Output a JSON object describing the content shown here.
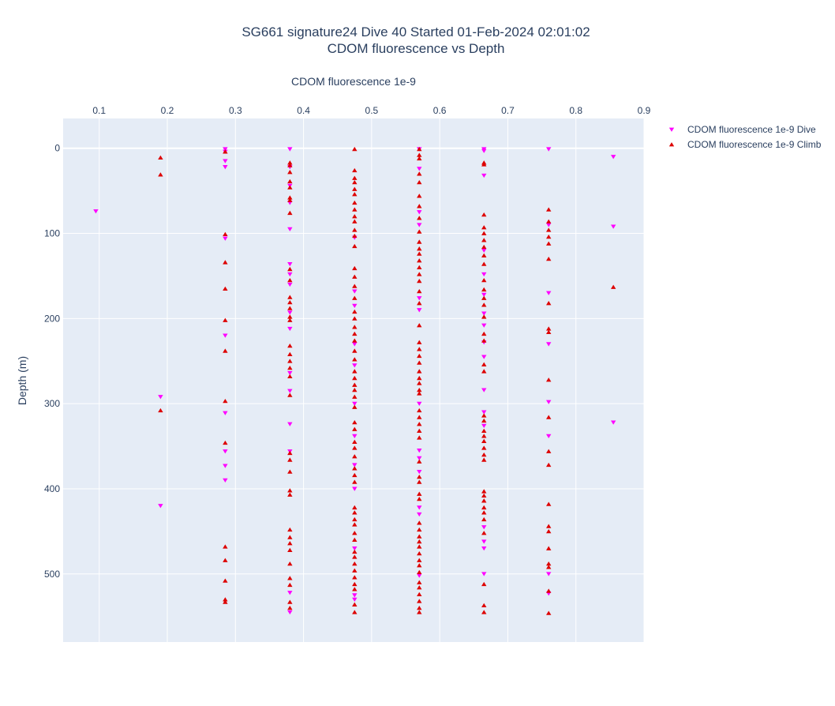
{
  "chart_data": {
    "type": "scatter",
    "title": "SG661 signature24 Dive 40 Started 01-Feb-2024 02:01:02",
    "subtitle": "CDOM fluorescence vs Depth",
    "xlabel": "CDOM fluorescence 1e-9",
    "ylabel": "Depth (m)",
    "x_ticks": [
      "0.1",
      "0.2",
      "0.3",
      "0.4",
      "0.5",
      "0.6",
      "0.7",
      "0.8",
      "0.9"
    ],
    "y_ticks": [
      "0",
      "100",
      "200",
      "300",
      "400",
      "500"
    ],
    "xlim": [
      0.047,
      0.9
    ],
    "ylim": [
      -35,
      580
    ],
    "x_axis_position": "top",
    "y_reversed": true,
    "grid": true,
    "legend_position": "top-right",
    "series": [
      {
        "name": "CDOM fluorescence 1e-9 Dive",
        "marker": "triangle-down",
        "color": "#ff00ff",
        "points": [
          [
            0.095,
            74
          ],
          [
            0.19,
            292
          ],
          [
            0.19,
            420
          ],
          [
            0.285,
            1
          ],
          [
            0.285,
            4
          ],
          [
            0.285,
            15
          ],
          [
            0.285,
            22
          ],
          [
            0.285,
            106
          ],
          [
            0.285,
            220
          ],
          [
            0.285,
            311
          ],
          [
            0.285,
            356
          ],
          [
            0.285,
            373
          ],
          [
            0.285,
            390
          ],
          [
            0.38,
            1
          ],
          [
            0.38,
            22
          ],
          [
            0.38,
            44
          ],
          [
            0.38,
            64
          ],
          [
            0.38,
            95
          ],
          [
            0.38,
            136
          ],
          [
            0.38,
            148
          ],
          [
            0.38,
            160
          ],
          [
            0.38,
            193
          ],
          [
            0.38,
            212
          ],
          [
            0.38,
            264
          ],
          [
            0.38,
            285
          ],
          [
            0.38,
            324
          ],
          [
            0.38,
            356
          ],
          [
            0.38,
            522
          ],
          [
            0.38,
            545
          ],
          [
            0.475,
            105
          ],
          [
            0.475,
            168
          ],
          [
            0.475,
            185
          ],
          [
            0.475,
            230
          ],
          [
            0.475,
            255
          ],
          [
            0.475,
            300
          ],
          [
            0.475,
            338
          ],
          [
            0.475,
            372
          ],
          [
            0.475,
            400
          ],
          [
            0.475,
            470
          ],
          [
            0.475,
            525
          ],
          [
            0.475,
            530
          ],
          [
            0.57,
            1
          ],
          [
            0.57,
            24
          ],
          [
            0.57,
            75
          ],
          [
            0.57,
            90
          ],
          [
            0.57,
            176
          ],
          [
            0.57,
            190
          ],
          [
            0.57,
            300
          ],
          [
            0.57,
            355
          ],
          [
            0.57,
            364
          ],
          [
            0.57,
            380
          ],
          [
            0.57,
            422
          ],
          [
            0.57,
            430
          ],
          [
            0.57,
            502
          ],
          [
            0.665,
            1
          ],
          [
            0.665,
            3
          ],
          [
            0.665,
            32
          ],
          [
            0.665,
            120
          ],
          [
            0.665,
            148
          ],
          [
            0.665,
            172
          ],
          [
            0.665,
            194
          ],
          [
            0.665,
            208
          ],
          [
            0.665,
            228
          ],
          [
            0.665,
            245
          ],
          [
            0.665,
            284
          ],
          [
            0.665,
            310
          ],
          [
            0.665,
            326
          ],
          [
            0.665,
            445
          ],
          [
            0.665,
            462
          ],
          [
            0.665,
            470
          ],
          [
            0.665,
            500
          ],
          [
            0.76,
            1
          ],
          [
            0.76,
            90
          ],
          [
            0.76,
            170
          ],
          [
            0.76,
            230
          ],
          [
            0.76,
            298
          ],
          [
            0.76,
            338
          ],
          [
            0.76,
            500
          ],
          [
            0.76,
            523
          ],
          [
            0.855,
            10
          ],
          [
            0.855,
            92
          ],
          [
            0.855,
            322
          ]
        ]
      },
      {
        "name": "CDOM fluorescence 1e-9 Climb",
        "marker": "triangle-up",
        "color": "#dd0000",
        "points": [
          [
            0.19,
            11
          ],
          [
            0.19,
            31
          ],
          [
            0.19,
            308
          ],
          [
            0.285,
            4
          ],
          [
            0.285,
            101
          ],
          [
            0.285,
            134
          ],
          [
            0.285,
            165
          ],
          [
            0.285,
            202
          ],
          [
            0.285,
            238
          ],
          [
            0.285,
            297
          ],
          [
            0.285,
            346
          ],
          [
            0.285,
            468
          ],
          [
            0.285,
            484
          ],
          [
            0.285,
            508
          ],
          [
            0.285,
            530
          ],
          [
            0.285,
            533
          ],
          [
            0.38,
            17
          ],
          [
            0.38,
            20
          ],
          [
            0.38,
            28
          ],
          [
            0.38,
            39
          ],
          [
            0.38,
            46
          ],
          [
            0.38,
            58
          ],
          [
            0.38,
            61
          ],
          [
            0.38,
            76
          ],
          [
            0.38,
            142
          ],
          [
            0.38,
            155
          ],
          [
            0.38,
            175
          ],
          [
            0.38,
            181
          ],
          [
            0.38,
            188
          ],
          [
            0.38,
            198
          ],
          [
            0.38,
            202
          ],
          [
            0.38,
            232
          ],
          [
            0.38,
            242
          ],
          [
            0.38,
            250
          ],
          [
            0.38,
            258
          ],
          [
            0.38,
            268
          ],
          [
            0.38,
            290
          ],
          [
            0.38,
            358
          ],
          [
            0.38,
            366
          ],
          [
            0.38,
            380
          ],
          [
            0.38,
            402
          ],
          [
            0.38,
            407
          ],
          [
            0.38,
            448
          ],
          [
            0.38,
            457
          ],
          [
            0.38,
            464
          ],
          [
            0.38,
            472
          ],
          [
            0.38,
            488
          ],
          [
            0.38,
            505
          ],
          [
            0.38,
            513
          ],
          [
            0.38,
            533
          ],
          [
            0.38,
            540
          ],
          [
            0.475,
            1
          ],
          [
            0.475,
            26
          ],
          [
            0.475,
            35
          ],
          [
            0.475,
            40
          ],
          [
            0.475,
            48
          ],
          [
            0.475,
            54
          ],
          [
            0.475,
            64
          ],
          [
            0.475,
            72
          ],
          [
            0.475,
            80
          ],
          [
            0.475,
            86
          ],
          [
            0.475,
            96
          ],
          [
            0.475,
            103
          ],
          [
            0.475,
            115
          ],
          [
            0.475,
            141
          ],
          [
            0.475,
            151
          ],
          [
            0.475,
            162
          ],
          [
            0.475,
            176
          ],
          [
            0.475,
            192
          ],
          [
            0.475,
            200
          ],
          [
            0.475,
            210
          ],
          [
            0.475,
            218
          ],
          [
            0.475,
            226
          ],
          [
            0.475,
            238
          ],
          [
            0.475,
            248
          ],
          [
            0.475,
            262
          ],
          [
            0.475,
            270
          ],
          [
            0.475,
            278
          ],
          [
            0.475,
            284
          ],
          [
            0.475,
            292
          ],
          [
            0.475,
            304
          ],
          [
            0.475,
            322
          ],
          [
            0.475,
            330
          ],
          [
            0.475,
            345
          ],
          [
            0.475,
            352
          ],
          [
            0.475,
            362
          ],
          [
            0.475,
            376
          ],
          [
            0.475,
            384
          ],
          [
            0.475,
            392
          ],
          [
            0.475,
            422
          ],
          [
            0.475,
            428
          ],
          [
            0.475,
            436
          ],
          [
            0.475,
            442
          ],
          [
            0.475,
            452
          ],
          [
            0.475,
            460
          ],
          [
            0.475,
            474
          ],
          [
            0.475,
            480
          ],
          [
            0.475,
            488
          ],
          [
            0.475,
            496
          ],
          [
            0.475,
            504
          ],
          [
            0.475,
            512
          ],
          [
            0.475,
            518
          ],
          [
            0.475,
            536
          ],
          [
            0.475,
            545
          ],
          [
            0.57,
            1
          ],
          [
            0.57,
            8
          ],
          [
            0.57,
            12
          ],
          [
            0.57,
            30
          ],
          [
            0.57,
            40
          ],
          [
            0.57,
            56
          ],
          [
            0.57,
            68
          ],
          [
            0.57,
            82
          ],
          [
            0.57,
            98
          ],
          [
            0.57,
            110
          ],
          [
            0.57,
            118
          ],
          [
            0.57,
            124
          ],
          [
            0.57,
            132
          ],
          [
            0.57,
            140
          ],
          [
            0.57,
            148
          ],
          [
            0.57,
            156
          ],
          [
            0.57,
            168
          ],
          [
            0.57,
            182
          ],
          [
            0.57,
            208
          ],
          [
            0.57,
            228
          ],
          [
            0.57,
            236
          ],
          [
            0.57,
            244
          ],
          [
            0.57,
            252
          ],
          [
            0.57,
            262
          ],
          [
            0.57,
            270
          ],
          [
            0.57,
            276
          ],
          [
            0.57,
            284
          ],
          [
            0.57,
            288
          ],
          [
            0.57,
            308
          ],
          [
            0.57,
            316
          ],
          [
            0.57,
            324
          ],
          [
            0.57,
            332
          ],
          [
            0.57,
            340
          ],
          [
            0.57,
            368
          ],
          [
            0.57,
            386
          ],
          [
            0.57,
            392
          ],
          [
            0.57,
            406
          ],
          [
            0.57,
            412
          ],
          [
            0.57,
            440
          ],
          [
            0.57,
            448
          ],
          [
            0.57,
            456
          ],
          [
            0.57,
            462
          ],
          [
            0.57,
            468
          ],
          [
            0.57,
            476
          ],
          [
            0.57,
            484
          ],
          [
            0.57,
            490
          ],
          [
            0.57,
            498
          ],
          [
            0.57,
            510
          ],
          [
            0.57,
            516
          ],
          [
            0.57,
            524
          ],
          [
            0.57,
            532
          ],
          [
            0.57,
            540
          ],
          [
            0.57,
            545
          ],
          [
            0.665,
            17
          ],
          [
            0.665,
            19
          ],
          [
            0.665,
            78
          ],
          [
            0.665,
            93
          ],
          [
            0.665,
            100
          ],
          [
            0.665,
            108
          ],
          [
            0.665,
            116
          ],
          [
            0.665,
            126
          ],
          [
            0.665,
            136
          ],
          [
            0.665,
            155
          ],
          [
            0.665,
            166
          ],
          [
            0.665,
            176
          ],
          [
            0.665,
            184
          ],
          [
            0.665,
            198
          ],
          [
            0.665,
            218
          ],
          [
            0.665,
            226
          ],
          [
            0.665,
            254
          ],
          [
            0.665,
            262
          ],
          [
            0.665,
            314
          ],
          [
            0.665,
            320
          ],
          [
            0.665,
            332
          ],
          [
            0.665,
            338
          ],
          [
            0.665,
            344
          ],
          [
            0.665,
            352
          ],
          [
            0.665,
            360
          ],
          [
            0.665,
            366
          ],
          [
            0.665,
            403
          ],
          [
            0.665,
            408
          ],
          [
            0.665,
            414
          ],
          [
            0.665,
            422
          ],
          [
            0.665,
            428
          ],
          [
            0.665,
            436
          ],
          [
            0.665,
            452
          ],
          [
            0.665,
            512
          ],
          [
            0.665,
            537
          ],
          [
            0.665,
            545
          ],
          [
            0.76,
            72
          ],
          [
            0.76,
            86
          ],
          [
            0.76,
            96
          ],
          [
            0.76,
            104
          ],
          [
            0.76,
            112
          ],
          [
            0.76,
            130
          ],
          [
            0.76,
            182
          ],
          [
            0.76,
            212
          ],
          [
            0.76,
            216
          ],
          [
            0.76,
            272
          ],
          [
            0.76,
            316
          ],
          [
            0.76,
            356
          ],
          [
            0.76,
            372
          ],
          [
            0.76,
            418
          ],
          [
            0.76,
            444
          ],
          [
            0.76,
            450
          ],
          [
            0.76,
            470
          ],
          [
            0.76,
            488
          ],
          [
            0.76,
            492
          ],
          [
            0.76,
            520
          ],
          [
            0.76,
            546
          ],
          [
            0.855,
            163
          ]
        ]
      }
    ]
  }
}
